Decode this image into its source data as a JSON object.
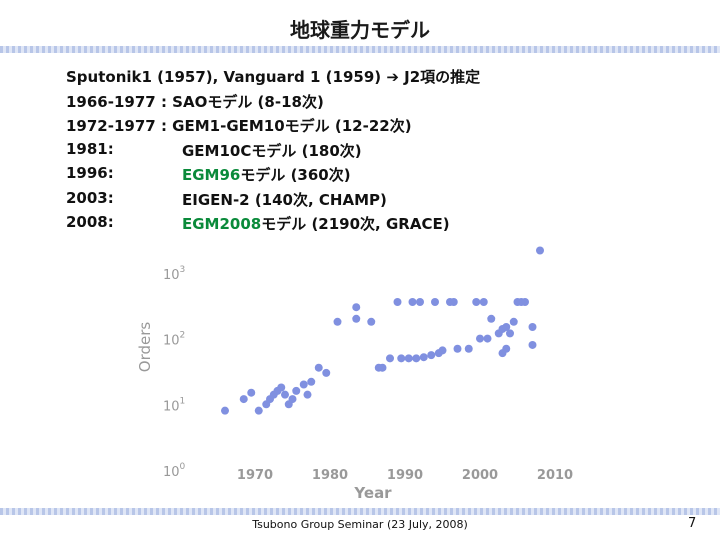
{
  "slide": {
    "title": "地球重力モデル",
    "lines": [
      {
        "a": "Sputonik1 (1957), Vanguard 1 (1959)  ➔ J2項の推定",
        "b": "",
        "b_green": "",
        "b_rest": ""
      },
      {
        "a": "1966-1977 : SAOモデル (8-18次)",
        "b": "",
        "b_green": "",
        "b_rest": ""
      },
      {
        "a": "1972-1977 : GEM1-GEM10モデル (12-22次)",
        "b": "",
        "b_green": "",
        "b_rest": ""
      },
      {
        "a": "1981:",
        "b": "",
        "b_green": "",
        "b_rest": "GEM10Cモデル (180次)"
      },
      {
        "a": "1996:",
        "b": "",
        "b_green": "EGM96",
        "b_rest": "モデル (360次)"
      },
      {
        "a": "2003:",
        "b": "",
        "b_green": "",
        "b_rest": "EIGEN-2 (140次, CHAMP)"
      },
      {
        "a": "2008:",
        "b": "",
        "b_green": "EGM2008",
        "b_rest": "モデル (2190次, GRACE)"
      }
    ],
    "footer": "Tsubono Group Seminar (23 July, 2008)",
    "page_number": "7"
  },
  "chart_data": {
    "type": "scatter",
    "xlabel": "Year",
    "ylabel": "Orders",
    "xlim": [
      1960,
      2010
    ],
    "ylim_log10": [
      0,
      3.5
    ],
    "log_y": true,
    "x_ticks": [
      1970,
      1980,
      1990,
      2000,
      2010
    ],
    "y_ticks": [
      {
        "base": "10",
        "exp": "0",
        "log": 0
      },
      {
        "base": "10",
        "exp": "1",
        "log": 1
      },
      {
        "base": "10",
        "exp": "2",
        "log": 2
      },
      {
        "base": "10",
        "exp": "3",
        "log": 3
      }
    ],
    "marker_color": "#8090e0",
    "points": [
      {
        "x": 1966,
        "y": 8
      },
      {
        "x": 1968.5,
        "y": 12
      },
      {
        "x": 1969.5,
        "y": 15
      },
      {
        "x": 1970.5,
        "y": 8
      },
      {
        "x": 1971.5,
        "y": 10
      },
      {
        "x": 1972,
        "y": 12
      },
      {
        "x": 1972.5,
        "y": 14
      },
      {
        "x": 1973,
        "y": 16
      },
      {
        "x": 1973.5,
        "y": 18
      },
      {
        "x": 1974,
        "y": 14
      },
      {
        "x": 1974.5,
        "y": 10
      },
      {
        "x": 1975,
        "y": 12
      },
      {
        "x": 1975.5,
        "y": 16
      },
      {
        "x": 1976.5,
        "y": 20
      },
      {
        "x": 1977,
        "y": 14
      },
      {
        "x": 1977.5,
        "y": 22
      },
      {
        "x": 1978.5,
        "y": 36
      },
      {
        "x": 1979.5,
        "y": 30
      },
      {
        "x": 1981,
        "y": 180
      },
      {
        "x": 1983.5,
        "y": 200
      },
      {
        "x": 1983.5,
        "y": 300
      },
      {
        "x": 1985.5,
        "y": 180
      },
      {
        "x": 1986.5,
        "y": 36
      },
      {
        "x": 1987,
        "y": 36
      },
      {
        "x": 1988,
        "y": 50
      },
      {
        "x": 1989,
        "y": 360
      },
      {
        "x": 1989.5,
        "y": 50
      },
      {
        "x": 1990.5,
        "y": 50
      },
      {
        "x": 1991,
        "y": 360
      },
      {
        "x": 1992,
        "y": 360
      },
      {
        "x": 1991.5,
        "y": 50
      },
      {
        "x": 1992.5,
        "y": 52
      },
      {
        "x": 1993.5,
        "y": 56
      },
      {
        "x": 1994.5,
        "y": 60
      },
      {
        "x": 1994,
        "y": 360
      },
      {
        "x": 1995,
        "y": 66
      },
      {
        "x": 1996,
        "y": 360
      },
      {
        "x": 1996.5,
        "y": 360
      },
      {
        "x": 1997,
        "y": 70
      },
      {
        "x": 1998.5,
        "y": 70
      },
      {
        "x": 1999.5,
        "y": 360
      },
      {
        "x": 2000.5,
        "y": 360
      },
      {
        "x": 2000,
        "y": 100
      },
      {
        "x": 2001,
        "y": 100
      },
      {
        "x": 2001.5,
        "y": 200
      },
      {
        "x": 2002.5,
        "y": 120
      },
      {
        "x": 2003,
        "y": 140
      },
      {
        "x": 2003.5,
        "y": 150
      },
      {
        "x": 2003.5,
        "y": 70
      },
      {
        "x": 2003,
        "y": 60
      },
      {
        "x": 2004,
        "y": 120
      },
      {
        "x": 2004.5,
        "y": 180
      },
      {
        "x": 2005,
        "y": 360
      },
      {
        "x": 2005.5,
        "y": 360
      },
      {
        "x": 2006,
        "y": 360
      },
      {
        "x": 2007,
        "y": 150
      },
      {
        "x": 2007,
        "y": 80
      },
      {
        "x": 2008,
        "y": 2190
      }
    ]
  }
}
